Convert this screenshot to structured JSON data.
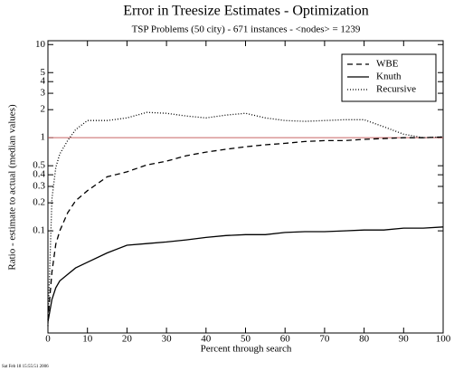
{
  "chart_data": {
    "type": "line",
    "title": "Error in Treesize Estimates - Optimization",
    "subtitle": "TSP Problems (50 city) - 671 instances - <nodes> = 1239",
    "xlabel": "Percent through search",
    "ylabel": "Ratio - estimate to actual (median values)",
    "footnote": "Sat Feb 18 15:55:51 2006",
    "x": [
      0,
      1,
      2,
      3,
      5,
      7,
      10,
      15,
      20,
      25,
      30,
      35,
      40,
      45,
      50,
      55,
      60,
      65,
      70,
      75,
      80,
      85,
      90,
      95,
      100
    ],
    "series": [
      {
        "name": "WBE",
        "color": "#000000",
        "dash": "dashed",
        "values": [
          0.011,
          0.036,
          0.072,
          0.1,
          0.156,
          0.21,
          0.27,
          0.38,
          0.43,
          0.51,
          0.56,
          0.64,
          0.7,
          0.75,
          0.8,
          0.84,
          0.87,
          0.91,
          0.93,
          0.93,
          0.96,
          0.98,
          1.0,
          1.0,
          1.02
        ]
      },
      {
        "name": "Knuth",
        "color": "#000000",
        "dash": "solid",
        "values": [
          0.0105,
          0.0183,
          0.0245,
          0.029,
          0.034,
          0.04,
          0.046,
          0.058,
          0.07,
          0.073,
          0.076,
          0.08,
          0.085,
          0.089,
          0.091,
          0.091,
          0.096,
          0.098,
          0.098,
          0.1,
          0.102,
          0.102,
          0.107,
          0.107,
          0.11
        ]
      },
      {
        "name": "Recursive",
        "color": "#000000",
        "dash": "dotted",
        "values": [
          0.0095,
          0.22,
          0.48,
          0.67,
          0.93,
          1.22,
          1.53,
          1.53,
          1.63,
          1.87,
          1.83,
          1.71,
          1.63,
          1.75,
          1.83,
          1.63,
          1.53,
          1.5,
          1.53,
          1.56,
          1.56,
          1.31,
          1.09,
          1.0,
          1.02
        ]
      }
    ],
    "xlim": [
      0,
      100
    ],
    "xticks": [
      0,
      10,
      20,
      30,
      40,
      50,
      60,
      70,
      80,
      90,
      100
    ],
    "ylim": [
      0.008,
      11
    ],
    "yticks": [
      0.1,
      0.2,
      0.3,
      0.4,
      0.5,
      1,
      2,
      3,
      4,
      5,
      10
    ],
    "log_y": true,
    "reference_line": 1,
    "reference_color": "#c86464",
    "legend": "top-right"
  }
}
